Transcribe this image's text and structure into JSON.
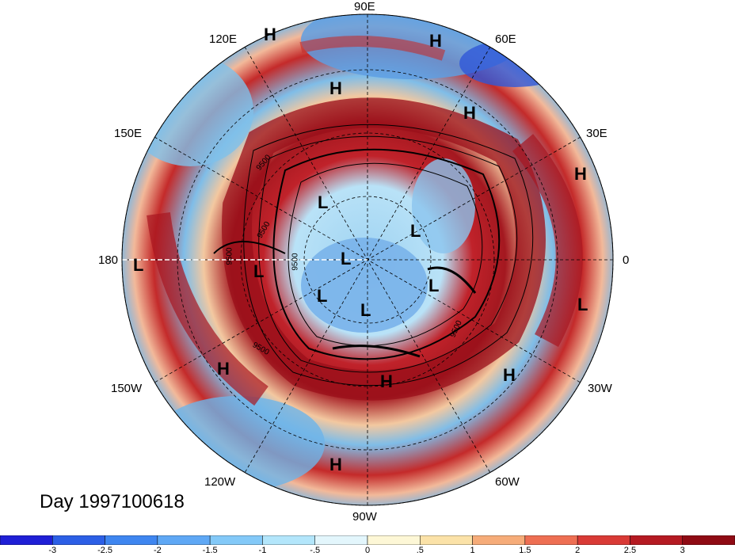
{
  "title_text": "Day 1997100618",
  "longitude_labels": [
    "90E",
    "60E",
    "30E",
    "0",
    "30W",
    "60W",
    "90W",
    "120W",
    "150W",
    "180",
    "150E",
    "120E"
  ],
  "contour_labels": [
    "9500",
    "9500",
    "9500",
    "9500",
    "9500",
    "9500"
  ],
  "pressure_centers": [
    {
      "type": "H",
      "text": "H"
    },
    {
      "type": "H",
      "text": "H"
    },
    {
      "type": "H",
      "text": "H"
    },
    {
      "type": "H",
      "text": "H"
    },
    {
      "type": "H",
      "text": "H"
    },
    {
      "type": "H",
      "text": "H"
    },
    {
      "type": "H",
      "text": "H"
    },
    {
      "type": "H",
      "text": "H"
    },
    {
      "type": "L",
      "text": "L"
    },
    {
      "type": "L",
      "text": "L"
    },
    {
      "type": "L",
      "text": "L"
    },
    {
      "type": "L",
      "text": "L"
    },
    {
      "type": "L",
      "text": "L"
    },
    {
      "type": "L",
      "text": "L"
    },
    {
      "type": "L",
      "text": "L"
    },
    {
      "type": "L",
      "text": "L"
    },
    {
      "type": "L",
      "text": "L"
    }
  ],
  "colorbar": {
    "ticks": [
      "-3",
      "-2.5",
      "-2",
      "-1.5",
      "-1",
      "-.5",
      "0",
      ".5",
      "1",
      "1.5",
      "2",
      "2.5",
      "3"
    ],
    "colors": [
      "#1f1fd6",
      "#2c5fe6",
      "#3f86f0",
      "#5fa8f5",
      "#83c9f8",
      "#b3e6fb",
      "#e3f6fc",
      "#fdf7d6",
      "#fbe2a8",
      "#f6ac79",
      "#ee6f53",
      "#d93a36",
      "#b51a22",
      "#8f0b14"
    ]
  }
}
